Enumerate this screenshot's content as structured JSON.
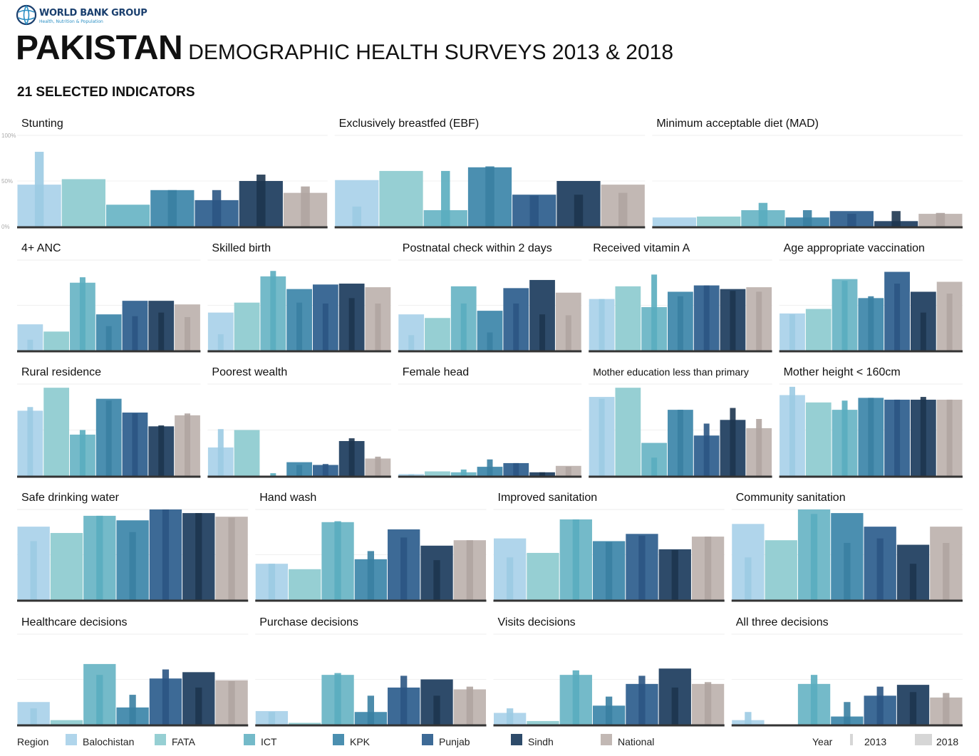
{
  "header": {
    "org": "WORLD BANK GROUP",
    "org_sub": "Health, Nutrition & Population",
    "country": "PAKISTAN",
    "subtitle": "DEMOGRAPHIC HEALTH SURVEYS 2013 & 2018",
    "section": "21 SELECTED INDICATORS"
  },
  "colors": {
    "Balochistan": "#b0d5eb",
    "FATA": "#96cfd3",
    "ICT": "#74bac9",
    "KPK": "#4b8fb0",
    "Punjab": "#3d6a96",
    "Sindh": "#2e4b6a",
    "National": "#c2b8b4",
    "Balochistan_2013": "#9ccbe3",
    "FATA_2013": "#80c4c9",
    "ICT_2013": "#5aadbf",
    "KPK_2013": "#3a7fa2",
    "Punjab_2013": "#2b5583",
    "Sindh_2013": "#1d354f",
    "National_2013": "#b0a5a1"
  },
  "legend": {
    "region_label": "Region",
    "regions": [
      "Balochistan",
      "FATA",
      "ICT",
      "KPK",
      "Punjab",
      "Sindh",
      "National"
    ],
    "year_label": "Year",
    "years": [
      "2013",
      "2018"
    ]
  },
  "chart_data": [
    {
      "type": "bar",
      "title": "Stunting",
      "ylim": [
        0,
        100
      ],
      "yticks": [
        "100%",
        "50%",
        "0%"
      ],
      "categories": [
        "Balochistan",
        "FATA",
        "ICT",
        "KPK",
        "Punjab",
        "Sindh",
        "National"
      ],
      "series": [
        {
          "name": "2013",
          "values": [
            82,
            null,
            null,
            40,
            40,
            57,
            44
          ]
        },
        {
          "name": "2018",
          "values": [
            46,
            52,
            24,
            40,
            29,
            50,
            37
          ]
        }
      ]
    },
    {
      "type": "bar",
      "title": "Exclusively breastfed (EBF)",
      "ylim": [
        0,
        100
      ],
      "categories": [
        "Balochistan",
        "FATA",
        "ICT",
        "KPK",
        "Punjab",
        "Sindh",
        "National"
      ],
      "series": [
        {
          "name": "2013",
          "values": [
            22,
            null,
            61,
            66,
            34,
            35,
            37
          ]
        },
        {
          "name": "2018",
          "values": [
            51,
            61,
            18,
            65,
            35,
            50,
            46
          ]
        }
      ]
    },
    {
      "type": "bar",
      "title": "Minimum acceptable diet (MAD)",
      "ylim": [
        0,
        100
      ],
      "categories": [
        "Balochistan",
        "FATA",
        "ICT",
        "KPK",
        "Punjab",
        "Sindh",
        "National"
      ],
      "series": [
        {
          "name": "2013",
          "values": [
            null,
            null,
            26,
            18,
            14,
            17,
            15
          ]
        },
        {
          "name": "2018",
          "values": [
            10,
            11,
            18,
            10,
            17,
            6,
            14
          ]
        }
      ]
    },
    {
      "type": "bar",
      "title": "4+ ANC",
      "ylim": [
        0,
        100
      ],
      "categories": [
        "Balochistan",
        "FATA",
        "ICT",
        "KPK",
        "Punjab",
        "Sindh",
        "National"
      ],
      "series": [
        {
          "name": "2013",
          "values": [
            12,
            null,
            81,
            27,
            38,
            42,
            37
          ]
        },
        {
          "name": "2018",
          "values": [
            29,
            21,
            75,
            40,
            55,
            55,
            51
          ]
        }
      ]
    },
    {
      "type": "bar",
      "title": "Skilled birth",
      "ylim": [
        0,
        100
      ],
      "categories": [
        "Balochistan",
        "FATA",
        "ICT",
        "KPK",
        "Punjab",
        "Sindh",
        "National"
      ],
      "series": [
        {
          "name": "2013",
          "values": [
            18,
            null,
            88,
            53,
            52,
            58,
            52
          ]
        },
        {
          "name": "2018",
          "values": [
            42,
            53,
            82,
            68,
            73,
            74,
            70
          ]
        }
      ]
    },
    {
      "type": "bar",
      "title": "Postnatal check within 2 days",
      "ylim": [
        0,
        100
      ],
      "categories": [
        "Balochistan",
        "FATA",
        "ICT",
        "KPK",
        "Punjab",
        "Sindh",
        "National"
      ],
      "series": [
        {
          "name": "2013",
          "values": [
            17,
            null,
            52,
            20,
            52,
            40,
            39
          ]
        },
        {
          "name": "2018",
          "values": [
            40,
            36,
            71,
            44,
            69,
            78,
            64
          ]
        }
      ]
    },
    {
      "type": "bar",
      "title": "Received vitamin A",
      "ylim": [
        0,
        100
      ],
      "categories": [
        "Balochistan",
        "FATA",
        "ICT",
        "KPK",
        "Punjab",
        "Sindh",
        "National"
      ],
      "series": [
        {
          "name": "2013",
          "values": [
            57,
            null,
            84,
            60,
            72,
            66,
            65
          ]
        },
        {
          "name": "2018",
          "values": [
            57,
            71,
            48,
            65,
            72,
            68,
            70
          ]
        }
      ]
    },
    {
      "type": "bar",
      "title": "Age appropriate vaccination",
      "ylim": [
        0,
        100
      ],
      "categories": [
        "Balochistan",
        "FATA",
        "ICT",
        "KPK",
        "Punjab",
        "Sindh",
        "National"
      ],
      "series": [
        {
          "name": "2013",
          "values": [
            40,
            null,
            77,
            60,
            74,
            42,
            63
          ]
        },
        {
          "name": "2018",
          "values": [
            41,
            46,
            79,
            58,
            87,
            65,
            76
          ]
        }
      ]
    },
    {
      "type": "bar",
      "title": "Rural residence",
      "ylim": [
        0,
        100
      ],
      "categories": [
        "Balochistan",
        "FATA",
        "ICT",
        "KPK",
        "Punjab",
        "Sindh",
        "National"
      ],
      "series": [
        {
          "name": "2013",
          "values": [
            75,
            null,
            50,
            82,
            68,
            55,
            68
          ]
        },
        {
          "name": "2018",
          "values": [
            71,
            96,
            45,
            84,
            69,
            54,
            66
          ]
        }
      ]
    },
    {
      "type": "bar",
      "title": "Poorest wealth",
      "ylim": [
        0,
        100
      ],
      "categories": [
        "Balochistan",
        "FATA",
        "ICT",
        "KPK",
        "Punjab",
        "Sindh",
        "National"
      ],
      "series": [
        {
          "name": "2013",
          "values": [
            51,
            null,
            3,
            12,
            13,
            41,
            21
          ]
        },
        {
          "name": "2018",
          "values": [
            31,
            50,
            0,
            15,
            12,
            38,
            19
          ]
        }
      ]
    },
    {
      "type": "bar",
      "title": "Female head",
      "ylim": [
        0,
        100
      ],
      "categories": [
        "Balochistan",
        "FATA",
        "ICT",
        "KPK",
        "Punjab",
        "Sindh",
        "National"
      ],
      "series": [
        {
          "name": "2013",
          "values": [
            2,
            null,
            7,
            18,
            14,
            4,
            10
          ]
        },
        {
          "name": "2018",
          "values": [
            2,
            5,
            4,
            10,
            14,
            4,
            11
          ]
        }
      ]
    },
    {
      "type": "bar",
      "title": "Mother education less than primary",
      "ylim": [
        0,
        100
      ],
      "categories": [
        "Balochistan",
        "FATA",
        "ICT",
        "KPK",
        "Punjab",
        "Sindh",
        "National"
      ],
      "series": [
        {
          "name": "2013",
          "values": [
            84,
            null,
            20,
            72,
            57,
            74,
            62
          ]
        },
        {
          "name": "2018",
          "values": [
            86,
            96,
            36,
            72,
            44,
            61,
            52
          ]
        }
      ]
    },
    {
      "type": "bar",
      "title": "Mother height < 160cm",
      "ylim": [
        0,
        100
      ],
      "categories": [
        "Balochistan",
        "FATA",
        "ICT",
        "KPK",
        "Punjab",
        "Sindh",
        "National"
      ],
      "series": [
        {
          "name": "2013",
          "values": [
            97,
            null,
            82,
            85,
            83,
            86,
            83
          ]
        },
        {
          "name": "2018",
          "values": [
            88,
            80,
            72,
            85,
            83,
            83,
            83
          ]
        }
      ]
    },
    {
      "type": "bar",
      "title": "Safe drinking water",
      "ylim": [
        0,
        100
      ],
      "categories": [
        "Balochistan",
        "FATA",
        "ICT",
        "KPK",
        "Punjab",
        "Sindh",
        "National"
      ],
      "series": [
        {
          "name": "2013",
          "values": [
            65,
            null,
            93,
            75,
            100,
            96,
            91
          ]
        },
        {
          "name": "2018",
          "values": [
            81,
            74,
            93,
            88,
            100,
            96,
            92
          ]
        }
      ]
    },
    {
      "type": "bar",
      "title": "Hand wash",
      "ylim": [
        0,
        100
      ],
      "categories": [
        "Balochistan",
        "FATA",
        "ICT",
        "KPK",
        "Punjab",
        "Sindh",
        "National"
      ],
      "series": [
        {
          "name": "2013",
          "values": [
            40,
            null,
            87,
            54,
            69,
            44,
            66
          ]
        },
        {
          "name": "2018",
          "values": [
            40,
            34,
            86,
            45,
            78,
            60,
            66
          ]
        }
      ]
    },
    {
      "type": "bar",
      "title": "Improved sanitation",
      "ylim": [
        0,
        100
      ],
      "categories": [
        "Balochistan",
        "FATA",
        "ICT",
        "KPK",
        "Punjab",
        "Sindh",
        "National"
      ],
      "series": [
        {
          "name": "2013",
          "values": [
            47,
            null,
            89,
            64,
            71,
            55,
            70
          ]
        },
        {
          "name": "2018",
          "values": [
            68,
            52,
            89,
            65,
            73,
            56,
            70
          ]
        }
      ]
    },
    {
      "type": "bar",
      "title": "Community sanitation",
      "ylim": [
        0,
        100
      ],
      "categories": [
        "Balochistan",
        "FATA",
        "ICT",
        "KPK",
        "Punjab",
        "Sindh",
        "National"
      ],
      "series": [
        {
          "name": "2013",
          "values": [
            47,
            null,
            95,
            63,
            68,
            40,
            63
          ]
        },
        {
          "name": "2018",
          "values": [
            84,
            66,
            100,
            96,
            81,
            61,
            81
          ]
        }
      ]
    },
    {
      "type": "bar",
      "title": "Healthcare decisions",
      "ylim": [
        0,
        100
      ],
      "categories": [
        "Balochistan",
        "FATA",
        "ICT",
        "KPK",
        "Punjab",
        "Sindh",
        "National"
      ],
      "series": [
        {
          "name": "2013",
          "values": [
            18,
            null,
            55,
            33,
            61,
            41,
            48
          ]
        },
        {
          "name": "2018",
          "values": [
            25,
            5,
            67,
            19,
            51,
            58,
            49
          ]
        }
      ]
    },
    {
      "type": "bar",
      "title": "Purchase decisions",
      "ylim": [
        0,
        100
      ],
      "categories": [
        "Balochistan",
        "FATA",
        "ICT",
        "KPK",
        "Punjab",
        "Sindh",
        "National"
      ],
      "series": [
        {
          "name": "2013",
          "values": [
            14,
            null,
            57,
            32,
            54,
            32,
            42
          ]
        },
        {
          "name": "2018",
          "values": [
            15,
            2,
            55,
            14,
            41,
            50,
            39
          ]
        }
      ]
    },
    {
      "type": "bar",
      "title": "Visits decisions",
      "ylim": [
        0,
        100
      ],
      "categories": [
        "Balochistan",
        "FATA",
        "ICT",
        "KPK",
        "Punjab",
        "Sindh",
        "National"
      ],
      "series": [
        {
          "name": "2013",
          "values": [
            18,
            null,
            60,
            31,
            54,
            41,
            47
          ]
        },
        {
          "name": "2018",
          "values": [
            13,
            4,
            55,
            21,
            45,
            62,
            45
          ]
        }
      ]
    },
    {
      "type": "bar",
      "title": "All three decisions",
      "ylim": [
        0,
        100
      ],
      "categories": [
        "Balochistan",
        "FATA",
        "ICT",
        "KPK",
        "Punjab",
        "Sindh",
        "National"
      ],
      "series": [
        {
          "name": "2013",
          "values": [
            14,
            null,
            55,
            25,
            42,
            36,
            35
          ]
        },
        {
          "name": "2018",
          "values": [
            5,
            0,
            45,
            9,
            32,
            44,
            30
          ]
        }
      ]
    }
  ]
}
